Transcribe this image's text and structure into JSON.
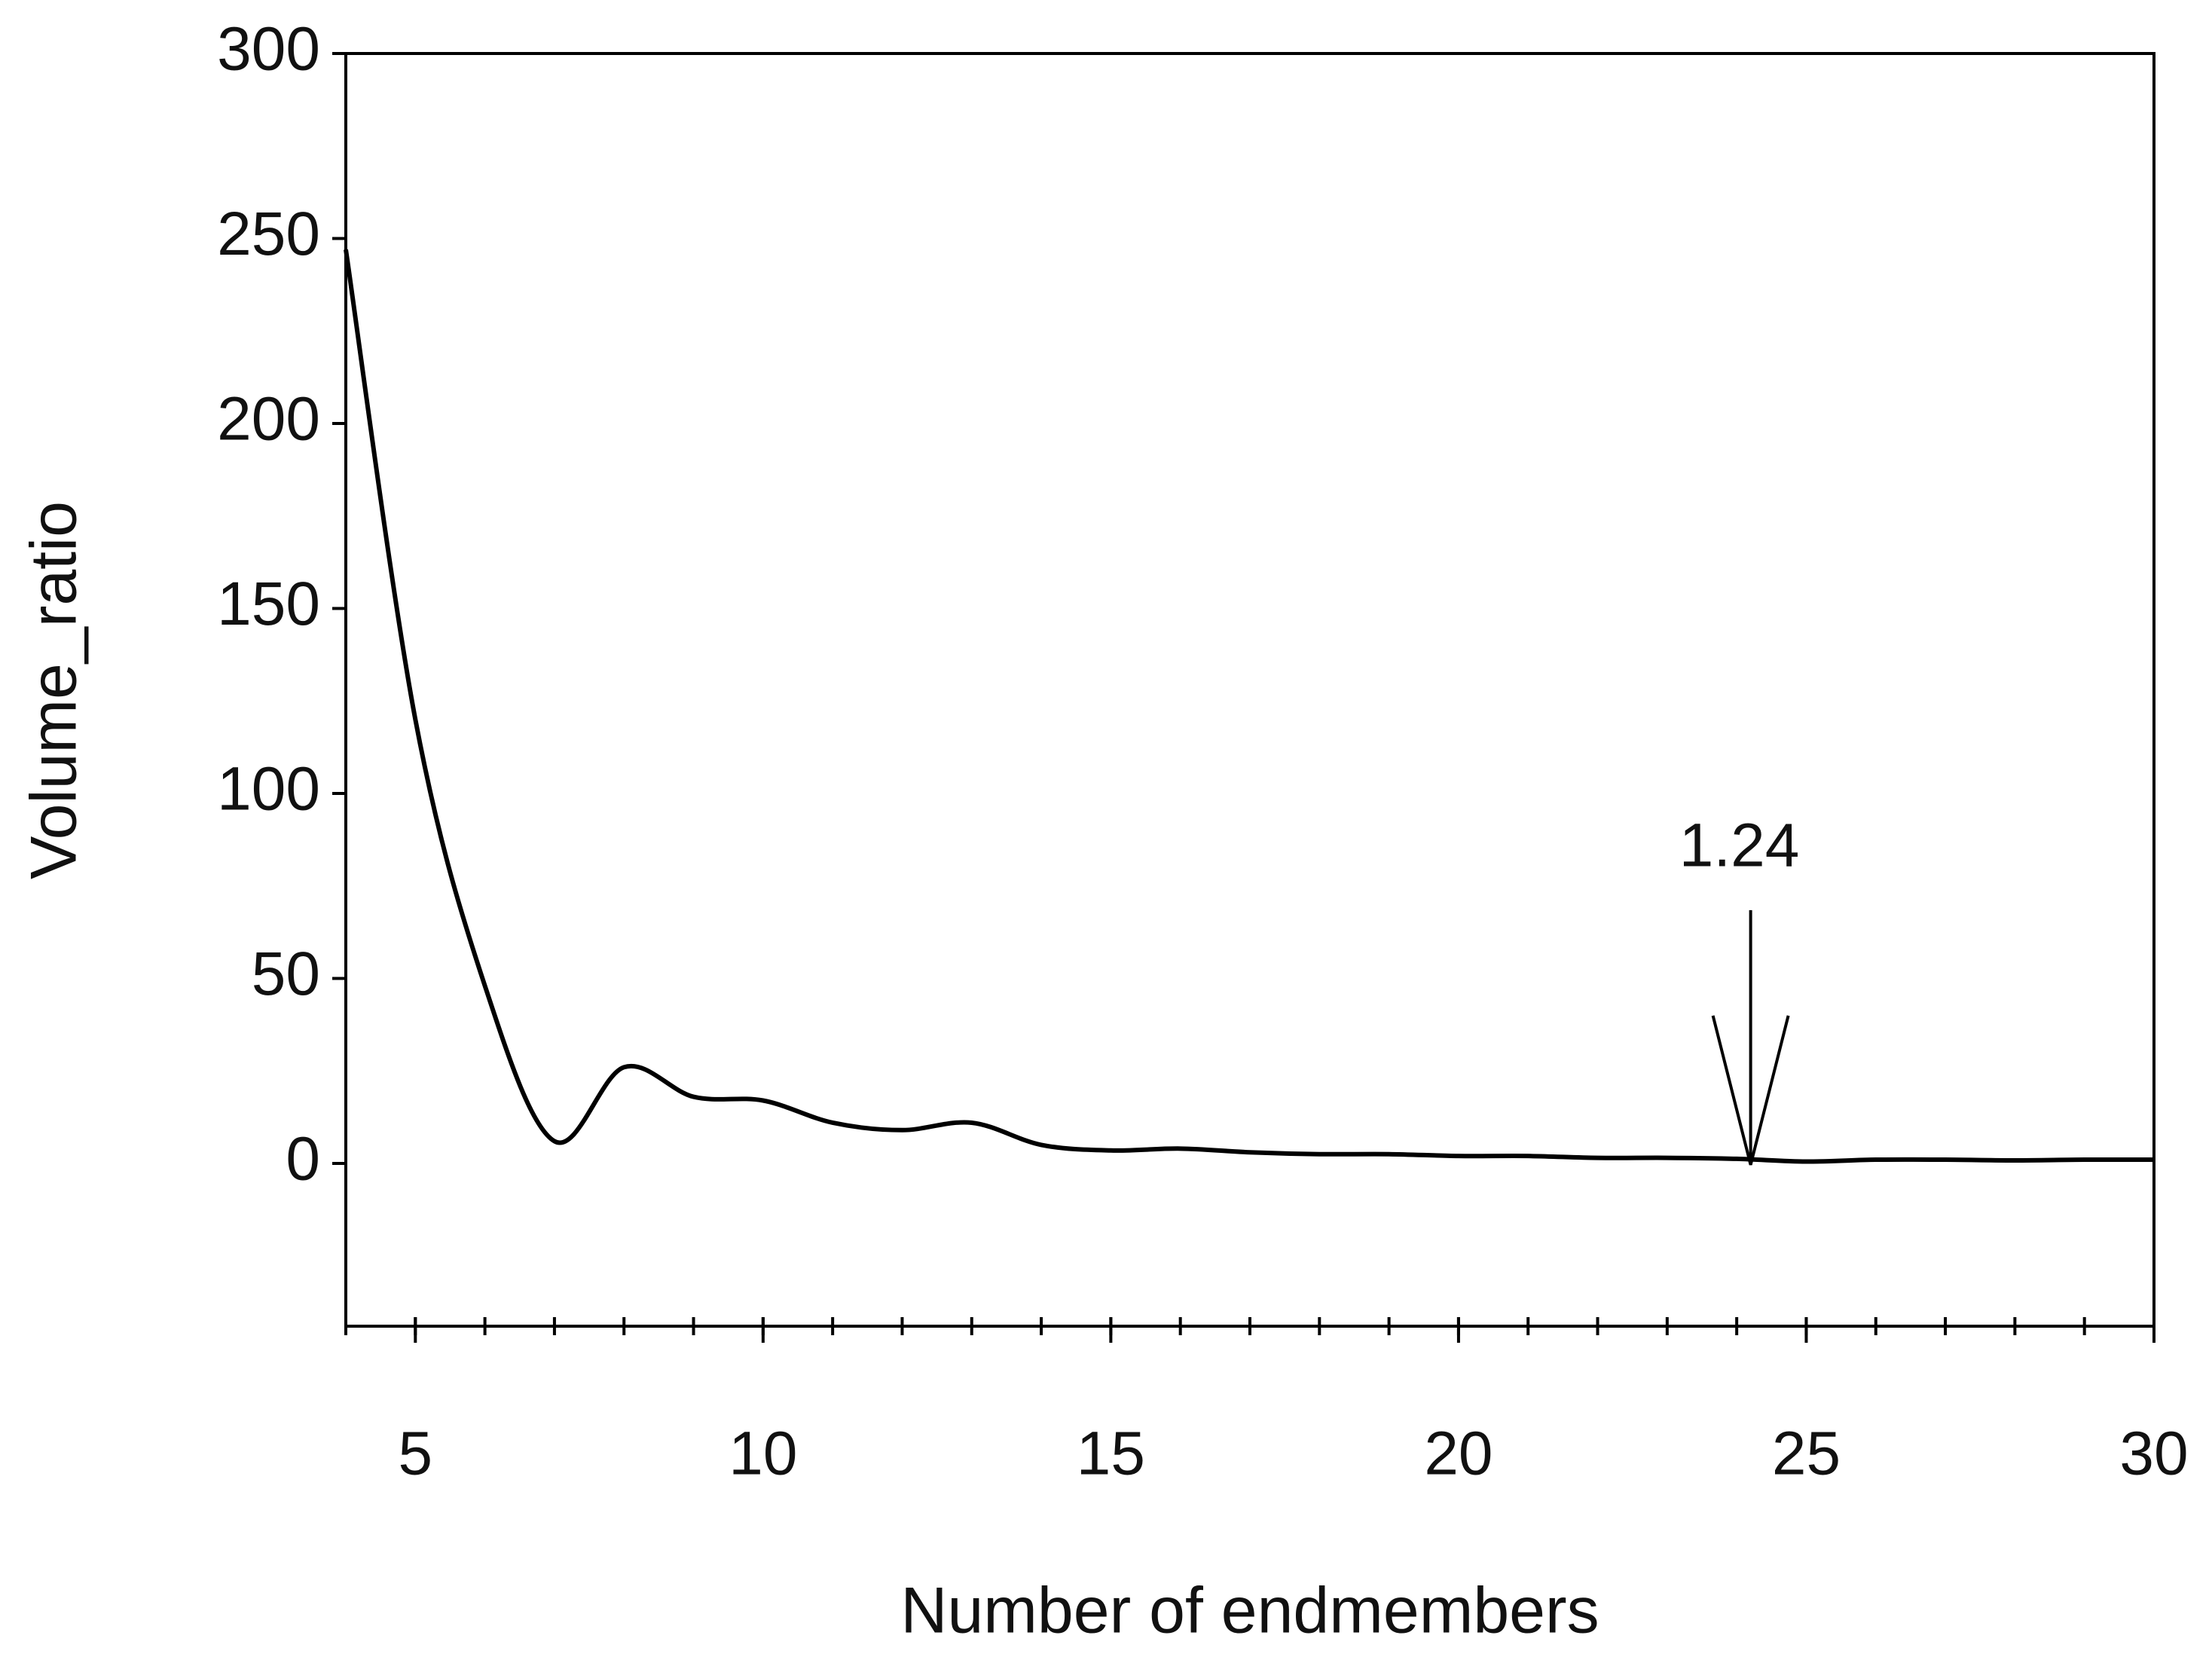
{
  "chart_data": {
    "type": "line",
    "x_label": "Number of endmembers",
    "y_label": "Volume_ratio",
    "x": [
      4,
      5,
      6,
      7,
      8,
      9,
      10,
      11,
      12,
      13,
      14,
      15,
      16,
      17,
      18,
      19,
      20,
      21,
      22,
      23,
      24,
      25,
      26,
      27,
      28,
      29,
      30
    ],
    "series": [
      {
        "name": "Volume_ratio",
        "color": "#000000",
        "values": [
          247,
          120,
          48,
          6,
          26,
          18,
          17,
          11,
          9,
          11,
          5,
          3.5,
          4,
          3,
          2.5,
          2.5,
          2,
          2,
          1.5,
          1.5,
          1.24,
          0.5,
          1,
          1,
          0.8,
          1,
          1
        ]
      }
    ],
    "xlim": [
      4,
      30
    ],
    "ylim": [
      -44,
      300
    ],
    "xticks": [
      5,
      10,
      15,
      20,
      25,
      30
    ],
    "xminorticks": [
      4,
      5,
      6,
      7,
      8,
      9,
      10,
      11,
      12,
      13,
      14,
      15,
      16,
      17,
      18,
      19,
      20,
      21,
      22,
      23,
      24,
      25,
      26,
      27,
      28,
      29,
      30
    ],
    "yticks": [
      0,
      50,
      100,
      150,
      200,
      250,
      300
    ],
    "grid": false,
    "annotations": [
      {
        "text": "1.24",
        "x": 24.2,
        "y": 1.24
      }
    ]
  }
}
